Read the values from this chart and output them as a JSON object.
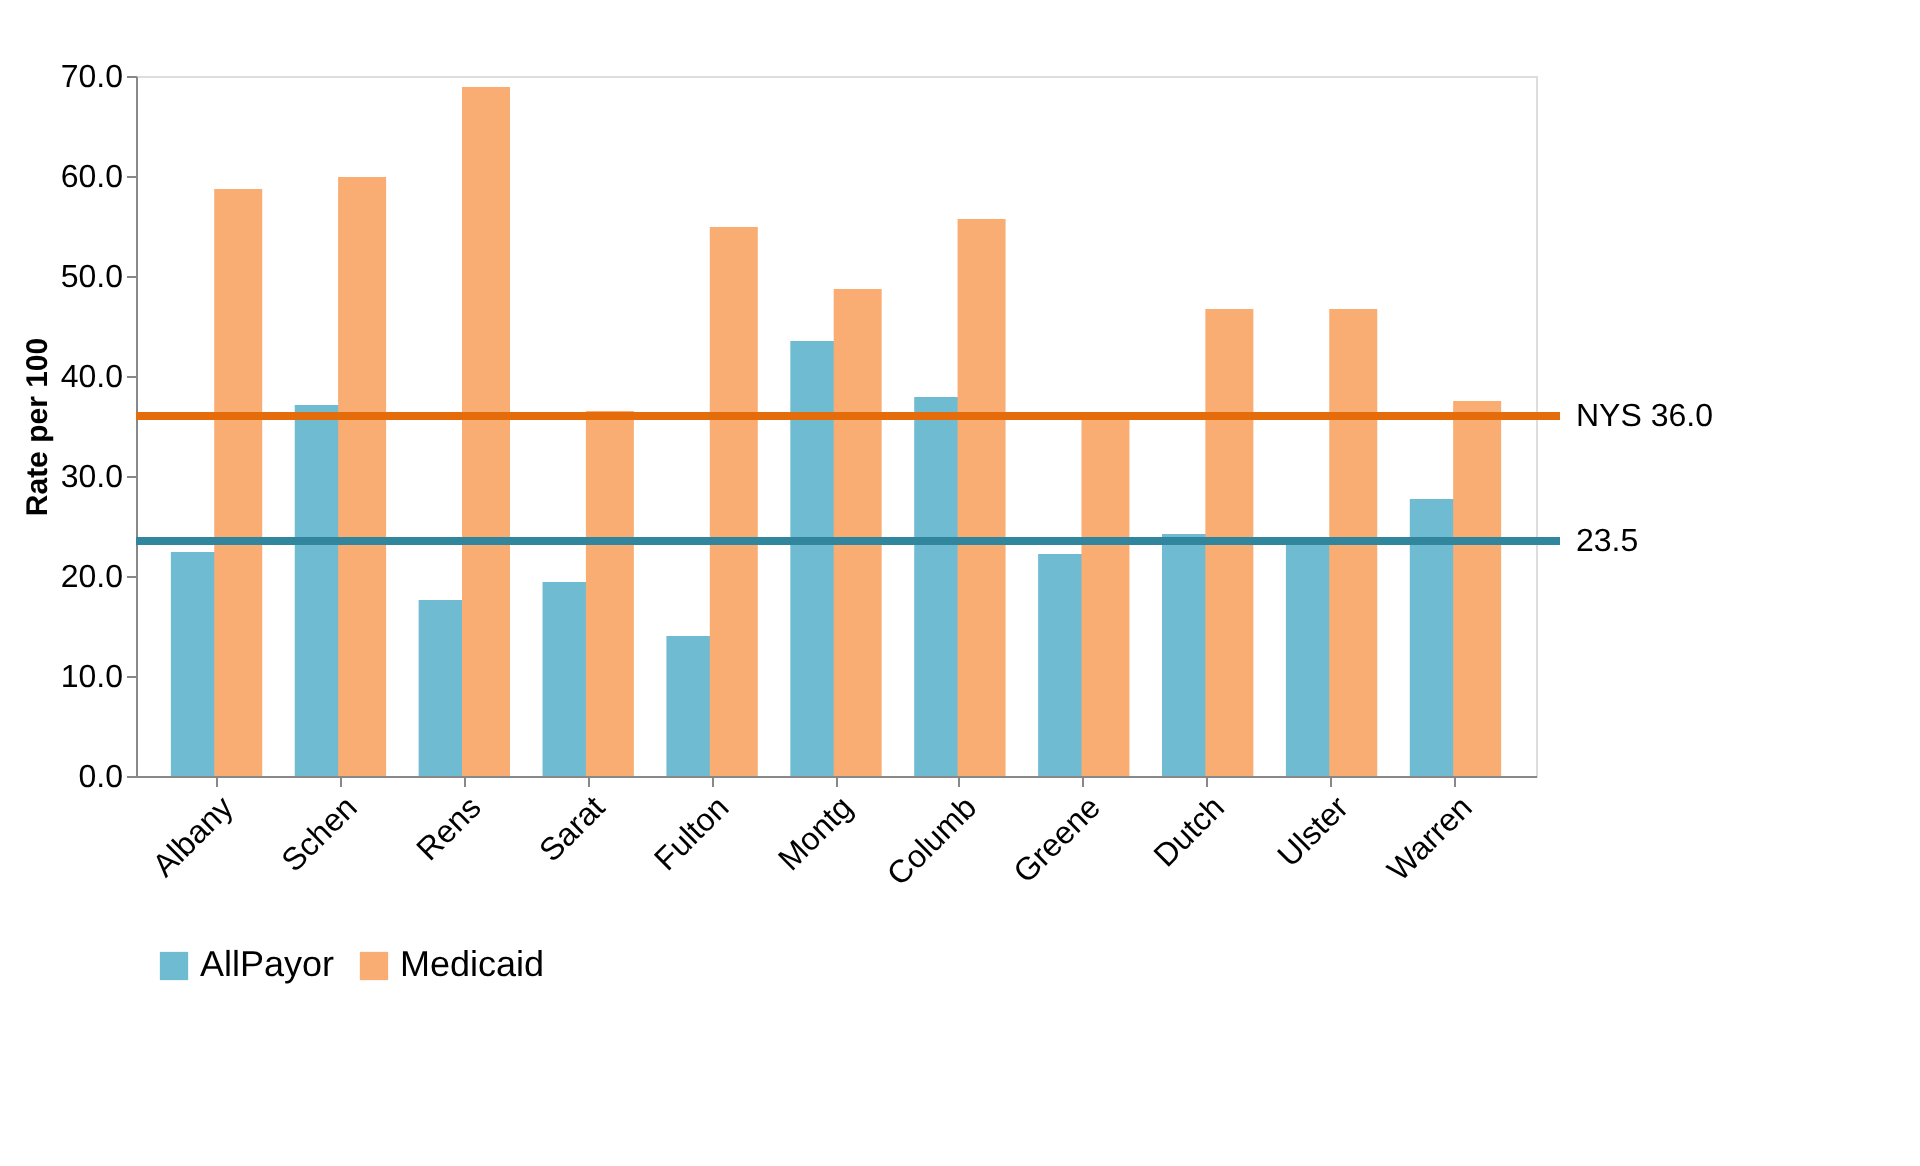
{
  "chart_data": {
    "type": "bar",
    "ylabel": "Rate per 100",
    "categories": [
      "Albany",
      "Schen",
      "Rens",
      "Sarat",
      "Fulton",
      "Montg",
      "Columb",
      "Greene",
      "Dutch",
      "Ulster",
      "Warren"
    ],
    "series": [
      {
        "name": "AllPayor",
        "color": "#6fbcd2",
        "values": [
          22.4,
          37.1,
          17.6,
          19.4,
          14.0,
          43.5,
          37.9,
          22.2,
          24.2,
          23.5,
          27.7
        ]
      },
      {
        "name": "Medicaid",
        "color": "#f9ad73",
        "values": [
          58.7,
          59.9,
          68.9,
          36.5,
          54.9,
          48.7,
          55.7,
          35.7,
          46.7,
          46.7,
          37.5
        ]
      }
    ],
    "ylim": [
      0,
      70
    ],
    "yticks": [
      {
        "value": 0,
        "label": "0.0"
      },
      {
        "value": 10,
        "label": "10.0"
      },
      {
        "value": 20,
        "label": "20.0"
      },
      {
        "value": 30,
        "label": "30.0"
      },
      {
        "value": 40,
        "label": "40.0"
      },
      {
        "value": 50,
        "label": "50.0"
      },
      {
        "value": 60,
        "label": "60.0"
      },
      {
        "value": 70,
        "label": "70.0"
      }
    ],
    "ref_lines": [
      {
        "axis": "y",
        "value": 36.0,
        "label": "NYS 36.0",
        "color": "#e46c0a"
      },
      {
        "axis": "y",
        "value": 23.5,
        "label": "23.5",
        "color": "#31859c"
      }
    ],
    "grid": false,
    "legend": "bottom"
  }
}
